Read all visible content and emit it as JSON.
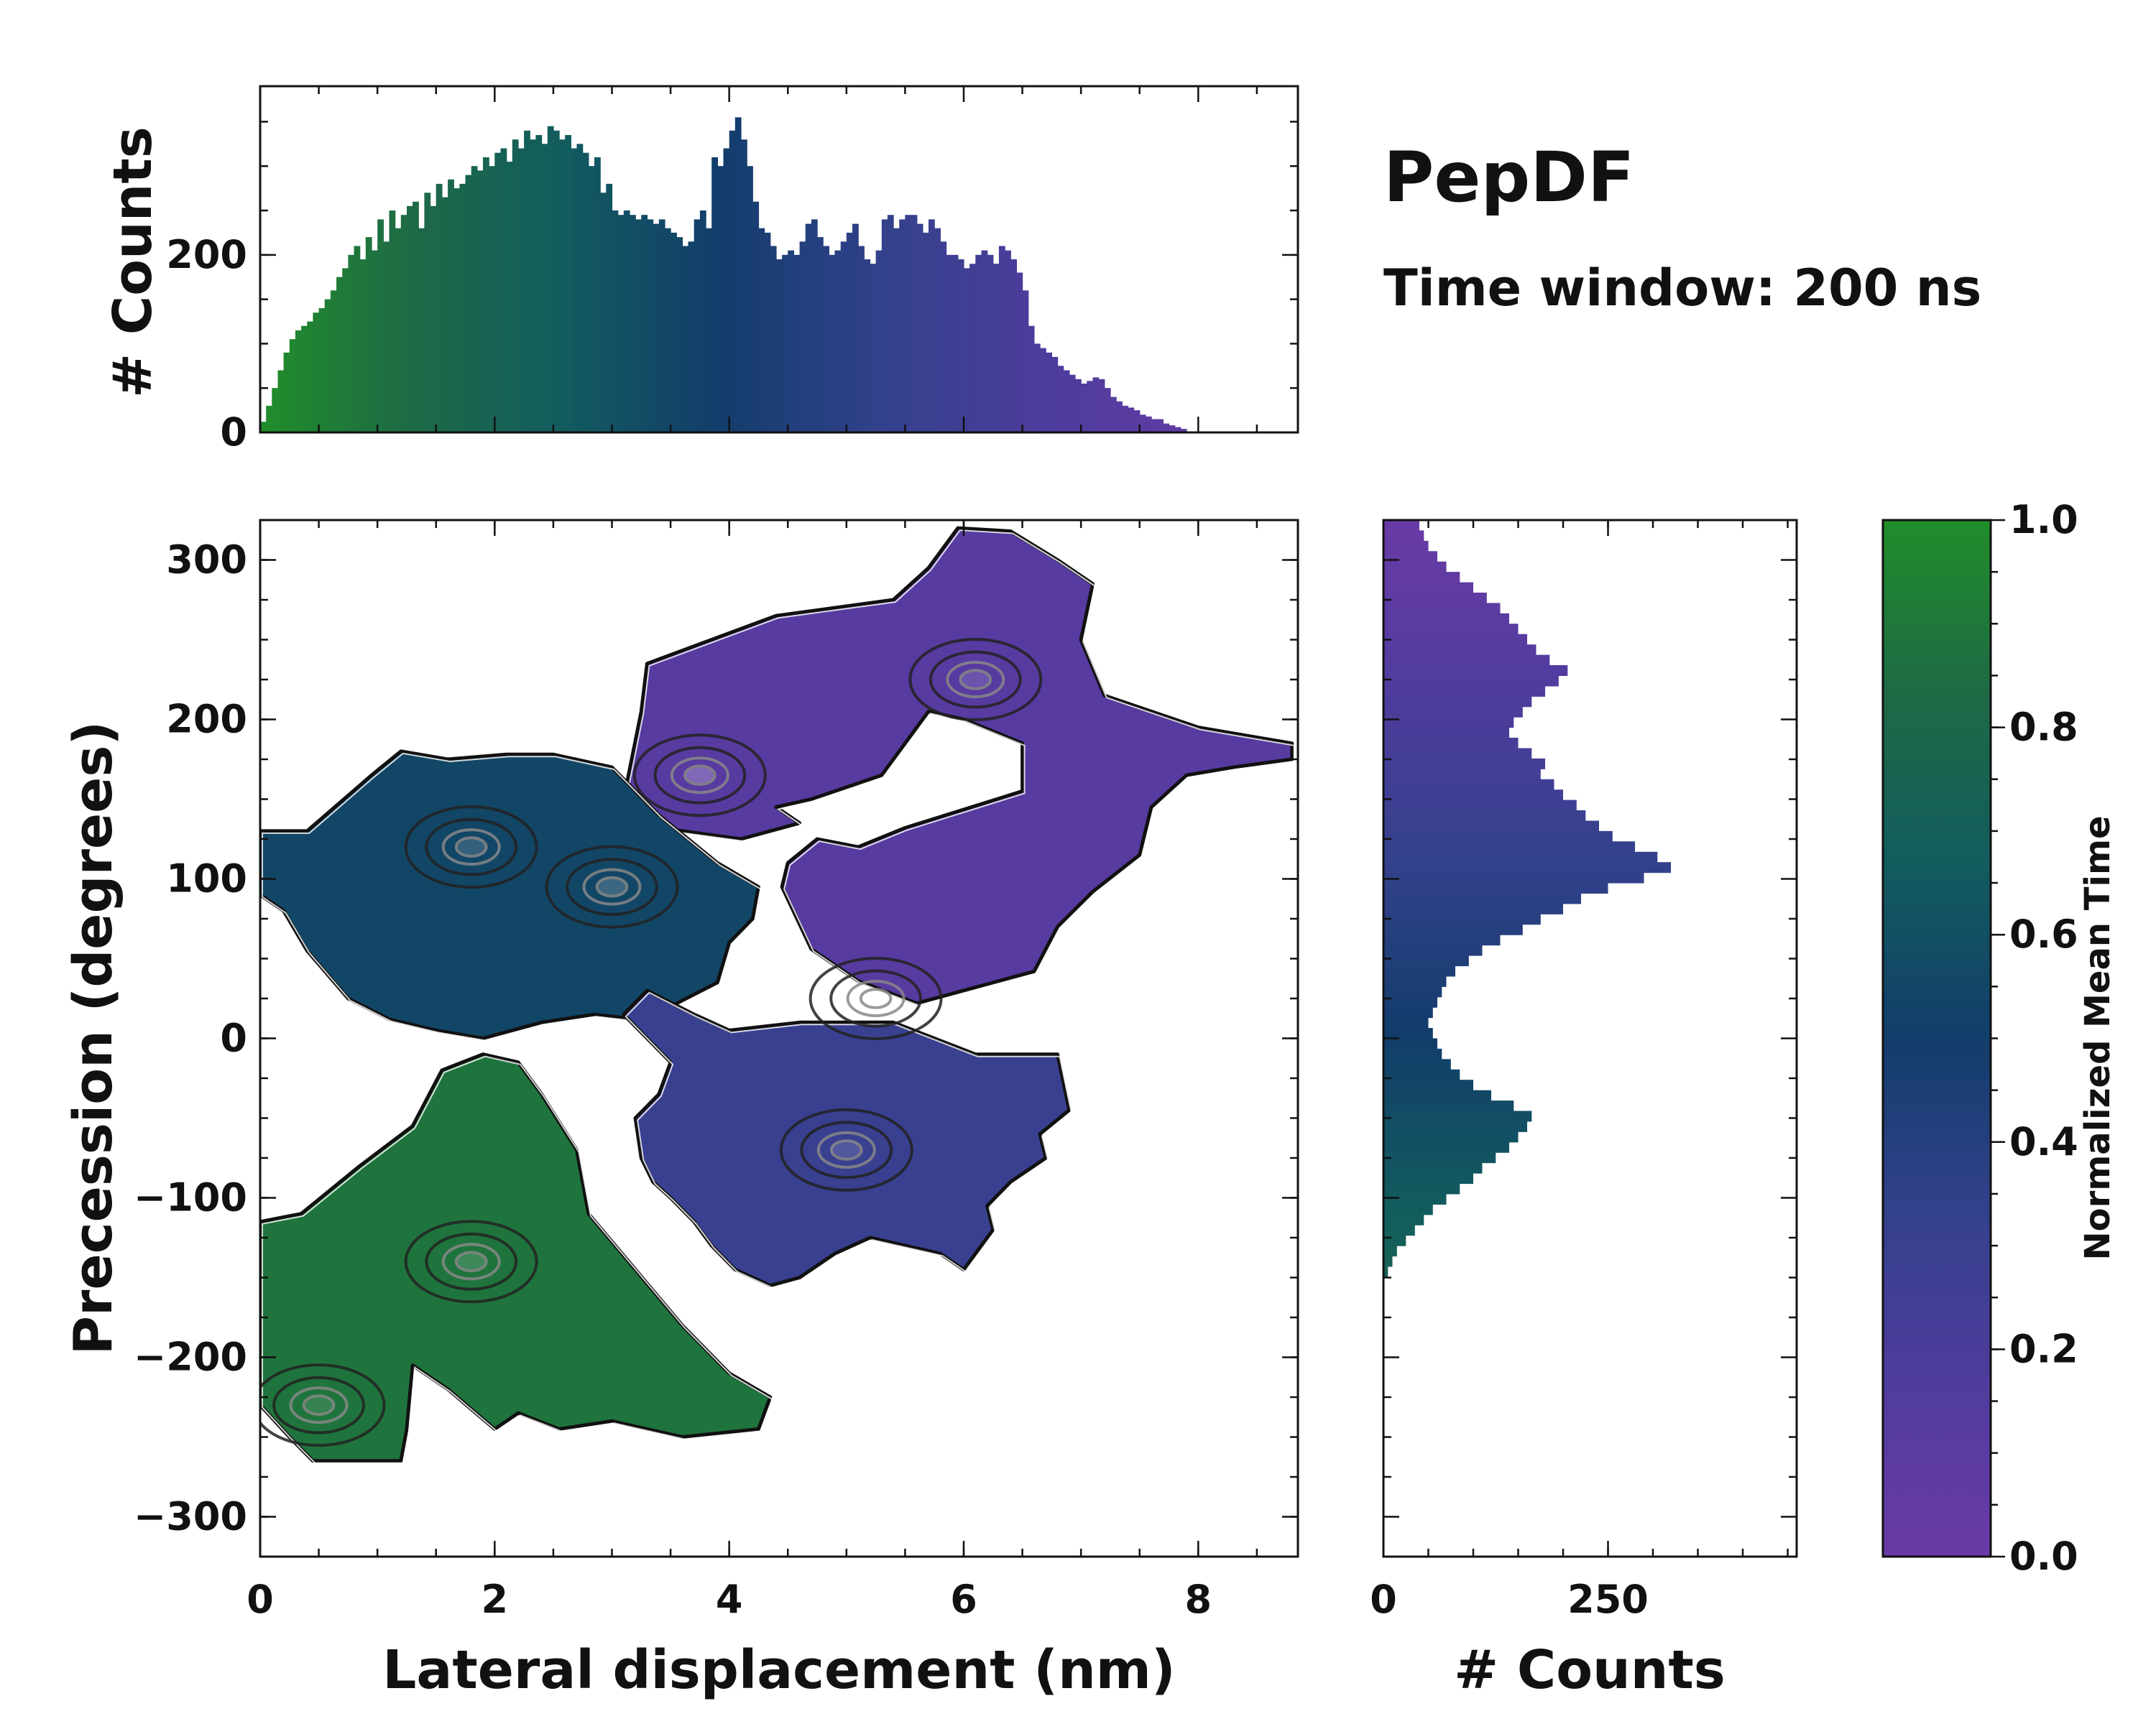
{
  "chart_data": {
    "type": "heatmap",
    "title": "PepDF",
    "subtitle": "Time window: 200 ns",
    "colormap": [
      "#6a3aa6",
      "#503c9e",
      "#33418c",
      "#123d6b",
      "#125c5e",
      "#1e6a45",
      "#208d2a"
    ],
    "main": {
      "xlabel": "Lateral displacement (nm)",
      "ylabel": "Precession (degrees)",
      "xlim": [
        0,
        8.85
      ],
      "ylim": [
        -325,
        325
      ],
      "xticks": [
        "0",
        "2",
        "4",
        "6",
        "8"
      ],
      "xtick_values": [
        0,
        2,
        4,
        6,
        8
      ],
      "yticks": [
        "−300",
        "−200",
        "−100",
        "0",
        "100",
        "200",
        "300"
      ],
      "ytick_values": [
        -300,
        -200,
        -100,
        0,
        100,
        200,
        300
      ],
      "regions": [
        {
          "name": "upper-right-purple",
          "color_value": 0.12,
          "points": [
            [
              3.1,
              150
            ],
            [
              3.25,
              205
            ],
            [
              3.3,
              235
            ],
            [
              4.4,
              265
            ],
            [
              5.4,
              275
            ],
            [
              5.7,
              295
            ],
            [
              5.95,
              320
            ],
            [
              6.4,
              318
            ],
            [
              6.8,
              300
            ],
            [
              7.1,
              285
            ],
            [
              7.0,
              250
            ],
            [
              7.2,
              215
            ],
            [
              7.6,
              205
            ],
            [
              8.0,
              195
            ],
            [
              8.8,
              185
            ],
            [
              8.8,
              175
            ],
            [
              8.3,
              170
            ],
            [
              7.9,
              165
            ],
            [
              7.6,
              145
            ],
            [
              7.5,
              115
            ],
            [
              7.1,
              92
            ],
            [
              6.8,
              70
            ],
            [
              6.6,
              42
            ],
            [
              5.6,
              22
            ],
            [
              5.1,
              36
            ],
            [
              4.7,
              56
            ],
            [
              4.45,
              95
            ],
            [
              4.5,
              110
            ],
            [
              4.75,
              125
            ],
            [
              5.1,
              120
            ],
            [
              5.5,
              132
            ],
            [
              6.5,
              155
            ],
            [
              6.5,
              185
            ],
            [
              6.0,
              200
            ],
            [
              5.7,
              205
            ],
            [
              5.3,
              165
            ],
            [
              4.7,
              150
            ],
            [
              4.4,
              145
            ],
            [
              4.6,
              135
            ],
            [
              4.1,
              125
            ],
            [
              3.6,
              130
            ],
            [
              3.25,
              135
            ]
          ]
        },
        {
          "name": "upper-left-teal",
          "color_value": 0.55,
          "points": [
            [
              0,
              130
            ],
            [
              0.4,
              130
            ],
            [
              0.95,
              165
            ],
            [
              1.2,
              180
            ],
            [
              1.6,
              175
            ],
            [
              2.1,
              178
            ],
            [
              2.5,
              178
            ],
            [
              3.0,
              170
            ],
            [
              3.4,
              140
            ],
            [
              3.9,
              110
            ],
            [
              4.25,
              95
            ],
            [
              4.2,
              75
            ],
            [
              4.0,
              60
            ],
            [
              3.9,
              35
            ],
            [
              3.5,
              20
            ],
            [
              3.2,
              12
            ],
            [
              2.85,
              15
            ],
            [
              2.4,
              10
            ],
            [
              1.9,
              0
            ],
            [
              1.5,
              5
            ],
            [
              1.1,
              12
            ],
            [
              0.75,
              25
            ],
            [
              0.4,
              55
            ],
            [
              0.2,
              80
            ],
            [
              0,
              90
            ]
          ]
        },
        {
          "name": "mid-blue",
          "color_value": 0.3,
          "points": [
            [
              3.3,
              30
            ],
            [
              3.7,
              15
            ],
            [
              4.0,
              5
            ],
            [
              4.6,
              10
            ],
            [
              5.4,
              10
            ],
            [
              6.1,
              -10
            ],
            [
              6.8,
              -10
            ],
            [
              6.9,
              -45
            ],
            [
              6.65,
              -60
            ],
            [
              6.7,
              -75
            ],
            [
              6.4,
              -90
            ],
            [
              6.2,
              -105
            ],
            [
              6.25,
              -120
            ],
            [
              6.0,
              -145
            ],
            [
              5.8,
              -135
            ],
            [
              5.2,
              -125
            ],
            [
              4.9,
              -135
            ],
            [
              4.6,
              -150
            ],
            [
              4.35,
              -155
            ],
            [
              4.05,
              -145
            ],
            [
              3.85,
              -130
            ],
            [
              3.7,
              -115
            ],
            [
              3.5,
              -100
            ],
            [
              3.35,
              -90
            ],
            [
              3.25,
              -75
            ],
            [
              3.2,
              -50
            ],
            [
              3.4,
              -35
            ],
            [
              3.5,
              -15
            ],
            [
              3.3,
              0
            ],
            [
              3.1,
              15
            ]
          ]
        },
        {
          "name": "lower-left-green",
          "color_value": 0.88,
          "points": [
            [
              0,
              -115
            ],
            [
              0.35,
              -110
            ],
            [
              0.85,
              -80
            ],
            [
              1.3,
              -55
            ],
            [
              1.55,
              -20
            ],
            [
              1.9,
              -10
            ],
            [
              2.2,
              -15
            ],
            [
              2.4,
              -35
            ],
            [
              2.7,
              -70
            ],
            [
              2.8,
              -110
            ],
            [
              3.2,
              -145
            ],
            [
              3.6,
              -180
            ],
            [
              4.0,
              -210
            ],
            [
              4.35,
              -225
            ],
            [
              4.25,
              -245
            ],
            [
              3.6,
              -250
            ],
            [
              3.0,
              -240
            ],
            [
              2.55,
              -245
            ],
            [
              2.2,
              -235
            ],
            [
              2.0,
              -245
            ],
            [
              1.6,
              -220
            ],
            [
              1.3,
              -205
            ],
            [
              1.25,
              -245
            ],
            [
              1.2,
              -265
            ],
            [
              0.8,
              -265
            ],
            [
              0.45,
              -265
            ],
            [
              0.25,
              -250
            ],
            [
              0,
              -230
            ]
          ]
        }
      ],
      "hotspots": [
        {
          "x": 3.75,
          "y": 165,
          "value": 0.95
        },
        {
          "x": 3.0,
          "y": 95,
          "value": 0.7
        },
        {
          "x": 1.8,
          "y": 120,
          "value": 0.55
        },
        {
          "x": 5.25,
          "y": 25,
          "value": 0.55
        },
        {
          "x": 5.0,
          "y": -70,
          "value": 0.5
        },
        {
          "x": 1.8,
          "y": -140,
          "value": 0.55
        },
        {
          "x": 6.1,
          "y": 225,
          "value": 0.5
        },
        {
          "x": 0.5,
          "y": -230,
          "value": 0.4
        }
      ]
    },
    "top_hist": {
      "ylabel": "# Counts",
      "yticks": [
        "0",
        "200"
      ],
      "ytick_values": [
        0,
        200
      ],
      "ylim": [
        0,
        390
      ],
      "bin_width": 0.05,
      "values": [
        12,
        30,
        50,
        70,
        90,
        105,
        115,
        120,
        125,
        135,
        140,
        150,
        160,
        175,
        185,
        200,
        210,
        195,
        220,
        205,
        240,
        215,
        250,
        230,
        245,
        255,
        260,
        230,
        270,
        255,
        280,
        265,
        285,
        275,
        280,
        290,
        300,
        295,
        310,
        300,
        315,
        320,
        305,
        330,
        320,
        340,
        330,
        335,
        325,
        345,
        340,
        330,
        335,
        320,
        325,
        315,
        300,
        310,
        270,
        280,
        250,
        245,
        250,
        245,
        240,
        245,
        240,
        235,
        240,
        230,
        225,
        220,
        210,
        215,
        240,
        250,
        230,
        310,
        300,
        320,
        340,
        355,
        330,
        300,
        260,
        230,
        225,
        210,
        195,
        200,
        205,
        200,
        215,
        235,
        240,
        220,
        210,
        200,
        205,
        215,
        225,
        235,
        210,
        195,
        190,
        205,
        240,
        245,
        230,
        240,
        245,
        245,
        235,
        225,
        240,
        230,
        215,
        200,
        200,
        195,
        185,
        190,
        200,
        205,
        200,
        190,
        210,
        205,
        195,
        180,
        160,
        120,
        100,
        95,
        90,
        85,
        75,
        70,
        65,
        60,
        55,
        58,
        62,
        60,
        50,
        40,
        35,
        30,
        28,
        25,
        20,
        18,
        15,
        15,
        10,
        8,
        6,
        4
      ]
    },
    "right_hist": {
      "xlabel": "# Counts",
      "xticks": [
        "0",
        "250"
      ],
      "xtick_values": [
        0,
        250
      ],
      "xlim": [
        0,
        460
      ],
      "bin_width": 6.5,
      "y_start": -325,
      "values": [
        0,
        0,
        0,
        0,
        0,
        0,
        0,
        0,
        0,
        0,
        0,
        0,
        0,
        0,
        0,
        0,
        0,
        0,
        0,
        0,
        0,
        0,
        0,
        0,
        0,
        0,
        0,
        5,
        10,
        15,
        25,
        35,
        45,
        55,
        70,
        85,
        100,
        110,
        125,
        140,
        150,
        160,
        165,
        145,
        120,
        100,
        85,
        75,
        65,
        60,
        55,
        50,
        55,
        60,
        65,
        70,
        80,
        95,
        110,
        130,
        155,
        175,
        200,
        220,
        250,
        290,
        320,
        305,
        280,
        255,
        240,
        225,
        215,
        200,
        190,
        175,
        180,
        165,
        150,
        140,
        145,
        155,
        165,
        180,
        195,
        205,
        185,
        170,
        160,
        150,
        140,
        130,
        115,
        100,
        85,
        70,
        60,
        50,
        45,
        40,
        45,
        50,
        60,
        70,
        85,
        100,
        120,
        140,
        160,
        175,
        190,
        200,
        185,
        175,
        165,
        180,
        200,
        215,
        230,
        250,
        265,
        280,
        290,
        300,
        310,
        320,
        335,
        355,
        380,
        410,
        430,
        400,
        375,
        360,
        350,
        345,
        340,
        335,
        330,
        320,
        300,
        280,
        300,
        310,
        290,
        260,
        245,
        240,
        225,
        215,
        200,
        180,
        170,
        160,
        150,
        140,
        130,
        140,
        150,
        170,
        185,
        190,
        180,
        165,
        160,
        200,
        230,
        250,
        265,
        280,
        270,
        240,
        210,
        185,
        170,
        160,
        150,
        130,
        110,
        105,
        100,
        90,
        80,
        70,
        60,
        55,
        50,
        45,
        40,
        35,
        30,
        25,
        20,
        15,
        10
      ]
    },
    "colorbar": {
      "label": "Normalized Mean Time",
      "ticks": [
        "0.0",
        "0.2",
        "0.4",
        "0.6",
        "0.8",
        "1.0"
      ],
      "tick_values": [
        0,
        0.2,
        0.4,
        0.6,
        0.8,
        1.0
      ]
    }
  }
}
